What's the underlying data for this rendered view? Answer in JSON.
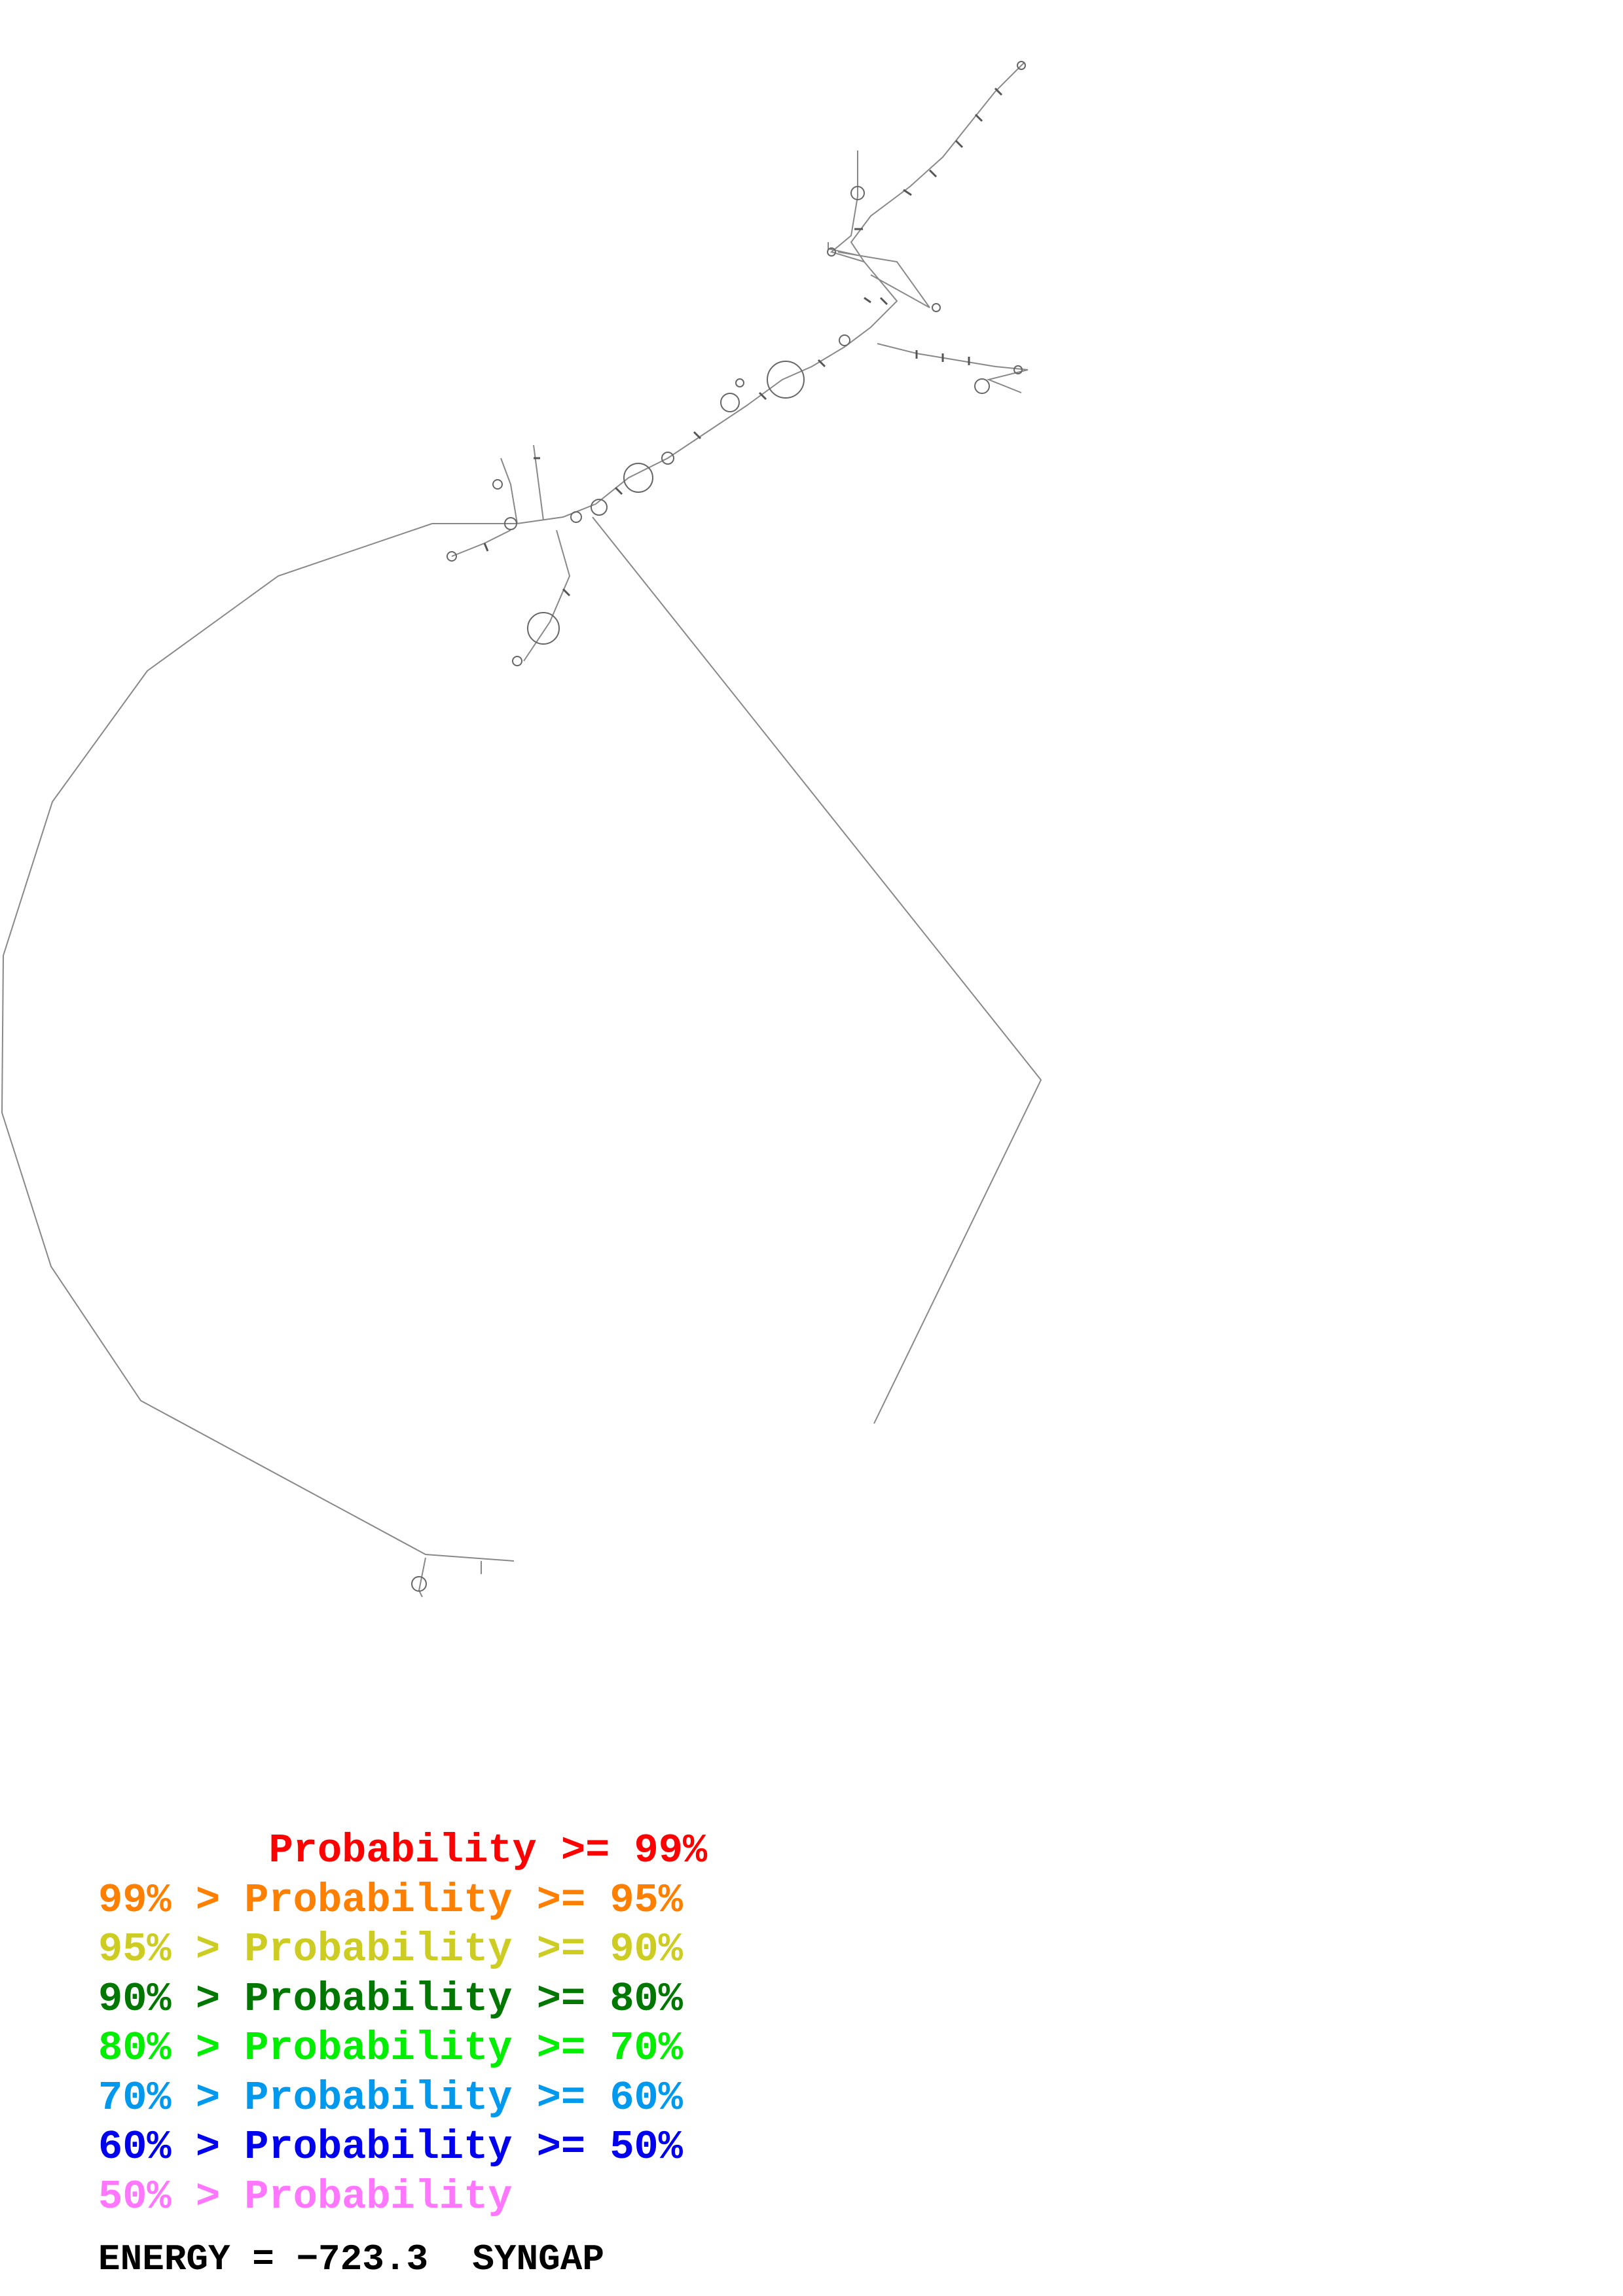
{
  "legend": [
    {
      "prefix": "       ",
      "label": "Probability >= 99%",
      "color": "#ff0000"
    },
    {
      "prefix": "99% > ",
      "label": "Probability >= 95%",
      "color": "#ff8000"
    },
    {
      "prefix": "95% > ",
      "label": "Probability >= 90%",
      "color": "#cccc22"
    },
    {
      "prefix": "90% > ",
      "label": "Probability >= 80%",
      "color": "#007700"
    },
    {
      "prefix": "80% > ",
      "label": "Probability >= 70%",
      "color": "#00ee00"
    },
    {
      "prefix": "70% > ",
      "label": "Probability >= 60%",
      "color": "#0099ee"
    },
    {
      "prefix": "60% > ",
      "label": "Probability >= 50%",
      "color": "#0000ee"
    },
    {
      "prefix": "50% > ",
      "label": "Probability",
      "color": "#ff77ff"
    }
  ],
  "energy": {
    "label": "ENERGY = ",
    "value": "−723.3",
    "name": "SYNGAP"
  },
  "diagram": {
    "line_color": "#777777",
    "pair_color": "#444444"
  }
}
